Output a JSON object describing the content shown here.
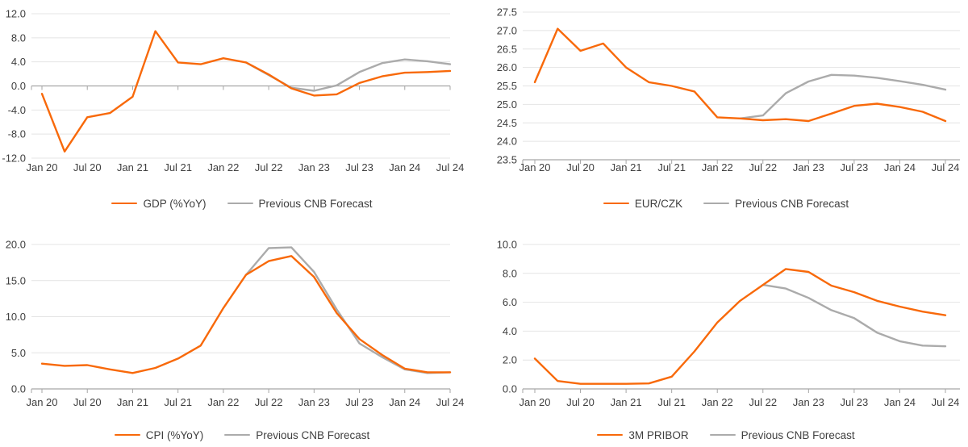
{
  "colors": {
    "accent_orange": "#f8690a",
    "forecast_gray": "#ababab",
    "gridline": "#e4e4e4",
    "axis": "#a6a6a6",
    "text": "#3f3f3f"
  },
  "chart_data": [
    {
      "type": "line",
      "title": "",
      "ylim": [
        -12,
        12
      ],
      "y_step": 4,
      "y_tick_labels": [
        "12.0",
        "8.0",
        "4.0",
        "0.0",
        "-4.0",
        "-8.0",
        "-12.0"
      ],
      "grid": true,
      "legend_position": "bottom",
      "x_tick_every": 2,
      "x_tick_labels": [
        "Jan 20",
        "Jul 20",
        "Jan 21",
        "Jul 21",
        "Jan 22",
        "Jul 22",
        "Jan 23",
        "Jul 23",
        "Jan 24",
        "Jul 24"
      ],
      "categories": [
        "Jan 20",
        "Apr 20",
        "Jul 20",
        "Oct 20",
        "Jan 21",
        "Apr 21",
        "Jul 21",
        "Oct 21",
        "Jan 22",
        "Apr 22",
        "Jul 22",
        "Oct 22",
        "Jan 23",
        "Apr 23",
        "Jul 23",
        "Oct 23",
        "Jan 24",
        "Apr 24",
        "Jul 24"
      ],
      "series": [
        {
          "name": "GDP (%YoY)",
          "color": "#f8690a",
          "start_index": 0,
          "values": [
            -1.3,
            -10.9,
            -5.2,
            -4.5,
            -1.8,
            9.1,
            3.9,
            3.6,
            4.6,
            3.9,
            1.9,
            -0.4,
            -1.6,
            -1.4,
            0.5,
            1.6,
            2.2,
            2.3,
            2.5
          ]
        },
        {
          "name": "Previous CNB Forecast",
          "color": "#ababab",
          "start_index": 9,
          "values": [
            3.9,
            1.8,
            -0.3,
            -0.8,
            0.1,
            2.3,
            3.8,
            4.4,
            4.1,
            3.6
          ]
        }
      ]
    },
    {
      "type": "line",
      "title": "",
      "ylim": [
        23.5,
        27.5
      ],
      "y_step": 0.5,
      "y_tick_labels": [
        "27.5",
        "27.0",
        "26.5",
        "26.0",
        "25.5",
        "25.0",
        "24.5",
        "24.0",
        "23.5"
      ],
      "grid": true,
      "legend_position": "bottom",
      "x_tick_every": 2,
      "x_tick_labels": [
        "Jan 20",
        "Jul 20",
        "Jan 21",
        "Jul 21",
        "Jan 22",
        "Jul 22",
        "Jan 23",
        "Jul 23",
        "Jan 24",
        "Jul 24"
      ],
      "categories": [
        "Jan 20",
        "Apr 20",
        "Jul 20",
        "Oct 20",
        "Jan 21",
        "Apr 21",
        "Jul 21",
        "Oct 21",
        "Jan 22",
        "Apr 22",
        "Jul 22",
        "Oct 22",
        "Jan 23",
        "Apr 23",
        "Jul 23",
        "Oct 23",
        "Jan 24",
        "Apr 24",
        "Jul 24"
      ],
      "series": [
        {
          "name": "EUR/CZK",
          "color": "#f8690a",
          "start_index": 0,
          "values": [
            25.6,
            27.05,
            26.45,
            26.65,
            26.0,
            25.6,
            25.5,
            25.35,
            24.65,
            24.62,
            24.57,
            24.6,
            24.55,
            24.75,
            24.96,
            25.02,
            24.93,
            24.8,
            24.55
          ]
        },
        {
          "name": "Previous CNB Forecast",
          "color": "#ababab",
          "start_index": 9,
          "values": [
            24.62,
            24.7,
            25.3,
            25.62,
            25.8,
            25.78,
            25.72,
            25.63,
            25.53,
            25.4
          ]
        }
      ]
    },
    {
      "type": "line",
      "title": "",
      "ylim": [
        0,
        20
      ],
      "y_step": 5,
      "y_tick_labels": [
        "20.0",
        "15.0",
        "10.0",
        "5.0",
        "0.0"
      ],
      "grid": true,
      "legend_position": "bottom",
      "x_tick_every": 2,
      "x_tick_labels": [
        "Jan 20",
        "Jul 20",
        "Jan 21",
        "Jul 21",
        "Jan 22",
        "Jul 22",
        "Jan 23",
        "Jul 23",
        "Jan 24",
        "Jul 24"
      ],
      "categories": [
        "Jan 20",
        "Apr 20",
        "Jul 20",
        "Oct 20",
        "Jan 21",
        "Apr 21",
        "Jul 21",
        "Oct 21",
        "Jan 22",
        "Apr 22",
        "Jul 22",
        "Oct 22",
        "Jan 23",
        "Apr 23",
        "Jul 23",
        "Oct 23",
        "Jan 24",
        "Apr 24",
        "Jul 24"
      ],
      "series": [
        {
          "name": "CPI (%YoY)",
          "color": "#f8690a",
          "start_index": 0,
          "values": [
            3.5,
            3.2,
            3.3,
            2.7,
            2.2,
            2.9,
            4.2,
            6.0,
            11.2,
            15.8,
            17.7,
            18.4,
            15.5,
            10.5,
            6.9,
            4.7,
            2.8,
            2.3,
            2.3
          ]
        },
        {
          "name": "Previous CNB Forecast",
          "color": "#ababab",
          "start_index": 9,
          "values": [
            15.8,
            19.5,
            19.6,
            16.2,
            11.0,
            6.3,
            4.4,
            2.7,
            2.2,
            2.3
          ]
        }
      ]
    },
    {
      "type": "line",
      "title": "",
      "ylim": [
        0,
        10
      ],
      "y_step": 2,
      "y_tick_labels": [
        "10.0",
        "8.0",
        "6.0",
        "4.0",
        "2.0",
        "0.0"
      ],
      "grid": true,
      "legend_position": "bottom",
      "x_tick_every": 2,
      "x_tick_labels": [
        "Jan 20",
        "Jul 20",
        "Jan 21",
        "Jul 21",
        "Jan 22",
        "Jul 22",
        "Jan 23",
        "Jul 23",
        "Jan 24",
        "Jul 24"
      ],
      "categories": [
        "Jan 20",
        "Apr 20",
        "Jul 20",
        "Oct 20",
        "Jan 21",
        "Apr 21",
        "Jul 21",
        "Oct 21",
        "Jan 22",
        "Apr 22",
        "Jul 22",
        "Oct 22",
        "Jan 23",
        "Apr 23",
        "Jul 23",
        "Oct 23",
        "Jan 24",
        "Apr 24",
        "Jul 24"
      ],
      "series": [
        {
          "name": "3M PRIBOR",
          "color": "#f8690a",
          "start_index": 0,
          "values": [
            2.1,
            0.55,
            0.35,
            0.35,
            0.35,
            0.38,
            0.85,
            2.6,
            4.6,
            6.1,
            7.2,
            8.3,
            8.1,
            7.15,
            6.7,
            6.1,
            5.7,
            5.35,
            5.1
          ]
        },
        {
          "name": "Previous CNB Forecast",
          "color": "#ababab",
          "start_index": 10,
          "values": [
            7.2,
            6.95,
            6.3,
            5.45,
            4.9,
            3.9,
            3.3,
            3.0,
            2.95
          ]
        }
      ]
    }
  ]
}
